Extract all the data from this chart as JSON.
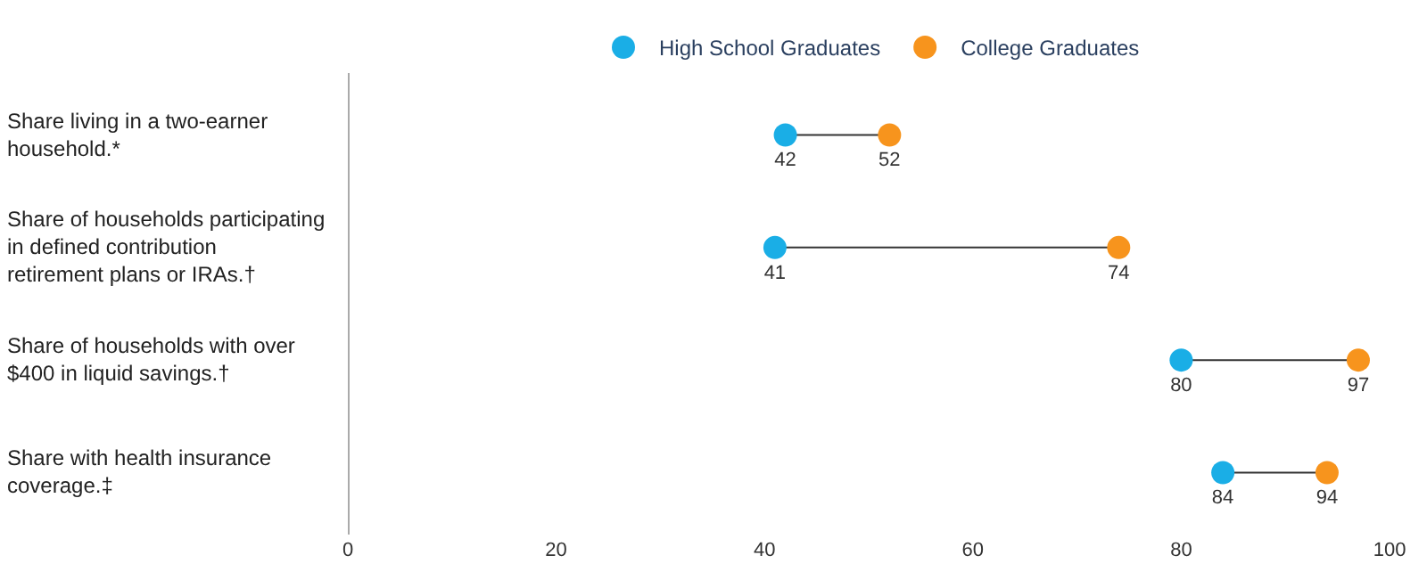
{
  "chart_data": {
    "type": "scatter",
    "orientation": "horizontal",
    "categories": [
      "Share living in a two-earner household.*",
      "Share of households participating in defined contribution retirement plans or IRAs.†",
      "Share of households with over $400 in liquid savings.†",
      "Share with health insurance coverage.‡"
    ],
    "series": [
      {
        "name": "High School Graduates",
        "color": "#1aaee6",
        "values": [
          42,
          41,
          80,
          84
        ]
      },
      {
        "name": "College Graduates",
        "color": "#f7941d",
        "values": [
          52,
          74,
          97,
          94
        ]
      }
    ],
    "xlim": [
      0,
      100
    ],
    "xticks": [
      0,
      20,
      40,
      60,
      80,
      100
    ],
    "legend": "top",
    "marker": "circle",
    "data_labels": true
  }
}
